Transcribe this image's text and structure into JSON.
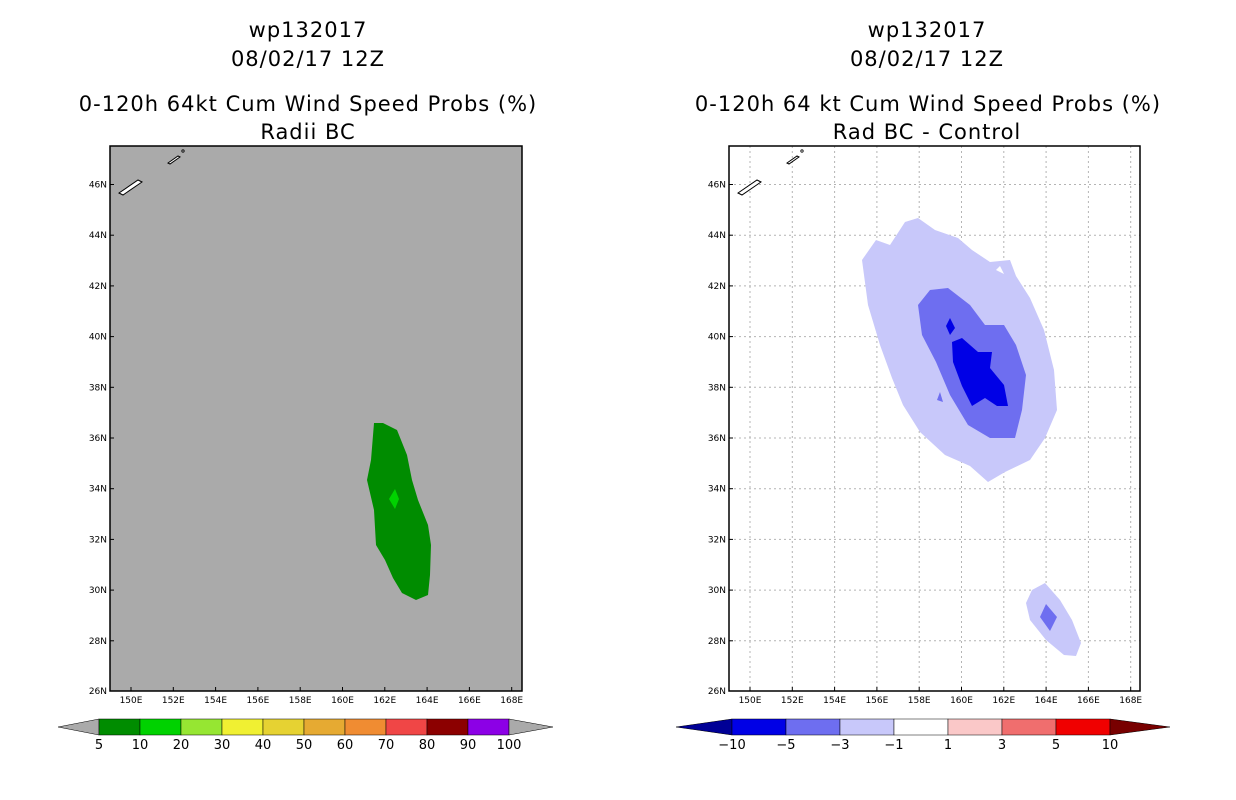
{
  "left_panel": {
    "storm_id": "wp132017",
    "datetime": "08/02/17 12Z",
    "title": "0-120h 64kt Cum Wind Speed Probs (%)",
    "subtitle": "Radii BC",
    "lat_labels": [
      "46N",
      "44N",
      "42N",
      "40N",
      "38N",
      "36N",
      "34N",
      "32N",
      "30N",
      "28N",
      "26N"
    ],
    "lon_labels": [
      "150E",
      "152E",
      "154E",
      "156E",
      "158E",
      "160E",
      "162E",
      "164E",
      "166E",
      "168E"
    ],
    "colorbar_labels": [
      "5",
      "10",
      "20",
      "30",
      "40",
      "50",
      "60",
      "70",
      "80",
      "90",
      "100"
    ],
    "colorbar_colors": [
      "#008c00",
      "#00d200",
      "#96e632",
      "#f0f032",
      "#e6d232",
      "#e6aa32",
      "#f08c32",
      "#f04646",
      "#8c0000",
      "#8c00e6"
    ],
    "background_color": "#aaaaaa"
  },
  "right_panel": {
    "storm_id": "wp132017",
    "datetime": "08/02/17 12Z",
    "title": "0-120h 64 kt Cum Wind Speed Probs (%)",
    "subtitle": "Rad BC - Control",
    "lat_labels": [
      "46N",
      "44N",
      "42N",
      "40N",
      "38N",
      "36N",
      "34N",
      "32N",
      "30N",
      "28N",
      "26N"
    ],
    "lon_labels": [
      "150E",
      "152E",
      "154E",
      "156E",
      "158E",
      "160E",
      "162E",
      "164E",
      "166E",
      "168E"
    ],
    "colorbar_labels": [
      "-10",
      "-5",
      "-3",
      "-1",
      "1",
      "3",
      "5",
      "10"
    ],
    "colorbar_colors": [
      "#0000e6",
      "#6e6ef0",
      "#c8c8fa",
      "#ffffff",
      "#fac8c8",
      "#f06e6e",
      "#f00000"
    ],
    "colorbar_end_low": "#000096",
    "colorbar_end_high": "#780000"
  }
}
